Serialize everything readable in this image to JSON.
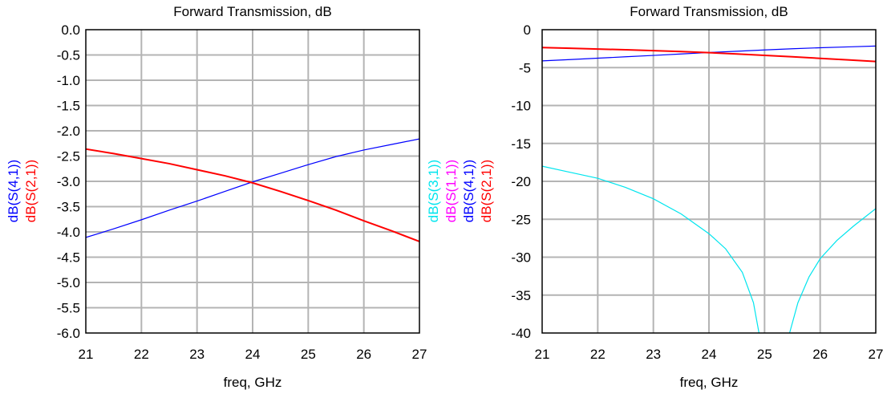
{
  "chart_data": [
    {
      "type": "line",
      "title": "Forward Transmission, dB",
      "xlabel": "freq, GHz",
      "xlim": [
        21,
        27
      ],
      "ylim": [
        -6.0,
        0.0
      ],
      "x_ticks": [
        21,
        22,
        23,
        24,
        25,
        26,
        27
      ],
      "x_tick_labels": [
        "21",
        "22",
        "23",
        "24",
        "25",
        "26",
        "27"
      ],
      "y_ticks": [
        0,
        -0.5,
        -1,
        -1.5,
        -2,
        -2.5,
        -3,
        -3.5,
        -4,
        -4.5,
        -5,
        -5.5,
        -6
      ],
      "y_tick_labels": [
        "0.0",
        "-0.5",
        "-1.0",
        "-1.5",
        "-2.0",
        "-2.5",
        "-3.0",
        "-3.5",
        "-4.0",
        "-4.5",
        "-5.0",
        "-5.5",
        "-6.0"
      ],
      "grid": true,
      "series": [
        {
          "name": "dB(S(4,1))",
          "color": "#0000ff",
          "x": [
            21,
            21.5,
            22,
            22.5,
            23,
            23.5,
            24,
            24.5,
            25,
            25.5,
            26,
            26.5,
            27
          ],
          "y": [
            -4.11,
            -3.94,
            -3.76,
            -3.57,
            -3.39,
            -3.2,
            -3.01,
            -2.84,
            -2.67,
            -2.51,
            -2.38,
            -2.27,
            -2.16
          ]
        },
        {
          "name": "dB(S(2,1))",
          "color": "#ff0000",
          "x": [
            21,
            21.5,
            22,
            22.5,
            23,
            23.5,
            24,
            24.5,
            25,
            25.5,
            26,
            26.5,
            27
          ],
          "y": [
            -2.36,
            -2.45,
            -2.55,
            -2.65,
            -2.77,
            -2.89,
            -3.03,
            -3.2,
            -3.38,
            -3.57,
            -3.78,
            -3.98,
            -4.19
          ]
        }
      ]
    },
    {
      "type": "line",
      "title": "Forward Transmission, dB",
      "xlabel": "freq, GHz",
      "xlim": [
        21,
        27
      ],
      "ylim": [
        -40,
        0
      ],
      "x_ticks": [
        21,
        22,
        23,
        24,
        25,
        26,
        27
      ],
      "x_tick_labels": [
        "21",
        "22",
        "23",
        "24",
        "25",
        "26",
        "27"
      ],
      "y_ticks": [
        0,
        -5,
        -10,
        -15,
        -20,
        -25,
        -30,
        -35,
        -40
      ],
      "y_tick_labels": [
        "0",
        "-5",
        "-10",
        "-15",
        "-20",
        "-25",
        "-30",
        "-35",
        "-40"
      ],
      "grid": true,
      "series": [
        {
          "name": "dB(S(3,1))",
          "color": "#00e5ee",
          "x": [
            21,
            21.5,
            22,
            22.5,
            23,
            23.5,
            24,
            24.3,
            24.6,
            24.8,
            24.9,
            null,
            25.45,
            25.6,
            25.8,
            26,
            26.3,
            26.6,
            27
          ],
          "y": [
            -18.0,
            -18.8,
            -19.6,
            -20.8,
            -22.3,
            -24.3,
            -26.9,
            -28.9,
            -32.0,
            -36.0,
            -40.0,
            null,
            -40.0,
            -36.0,
            -32.6,
            -30.2,
            -27.8,
            -25.9,
            -23.6
          ]
        },
        {
          "name": "dB(S(1,1))",
          "color": "#ff00ff",
          "x": [],
          "y": []
        },
        {
          "name": "dB(S(4,1))",
          "color": "#0000ff",
          "x": [
            21,
            21.5,
            22,
            22.5,
            23,
            23.5,
            24,
            24.5,
            25,
            25.5,
            26,
            26.5,
            27
          ],
          "y": [
            -4.11,
            -3.94,
            -3.76,
            -3.57,
            -3.39,
            -3.2,
            -3.01,
            -2.84,
            -2.67,
            -2.51,
            -2.38,
            -2.27,
            -2.16
          ]
        },
        {
          "name": "dB(S(2,1))",
          "color": "#ff0000",
          "x": [
            21,
            21.5,
            22,
            22.5,
            23,
            23.5,
            24,
            24.5,
            25,
            25.5,
            26,
            26.5,
            27
          ],
          "y": [
            -2.36,
            -2.45,
            -2.55,
            -2.65,
            -2.77,
            -2.89,
            -3.03,
            -3.2,
            -3.38,
            -3.57,
            -3.78,
            -3.98,
            -4.19
          ]
        }
      ]
    }
  ]
}
